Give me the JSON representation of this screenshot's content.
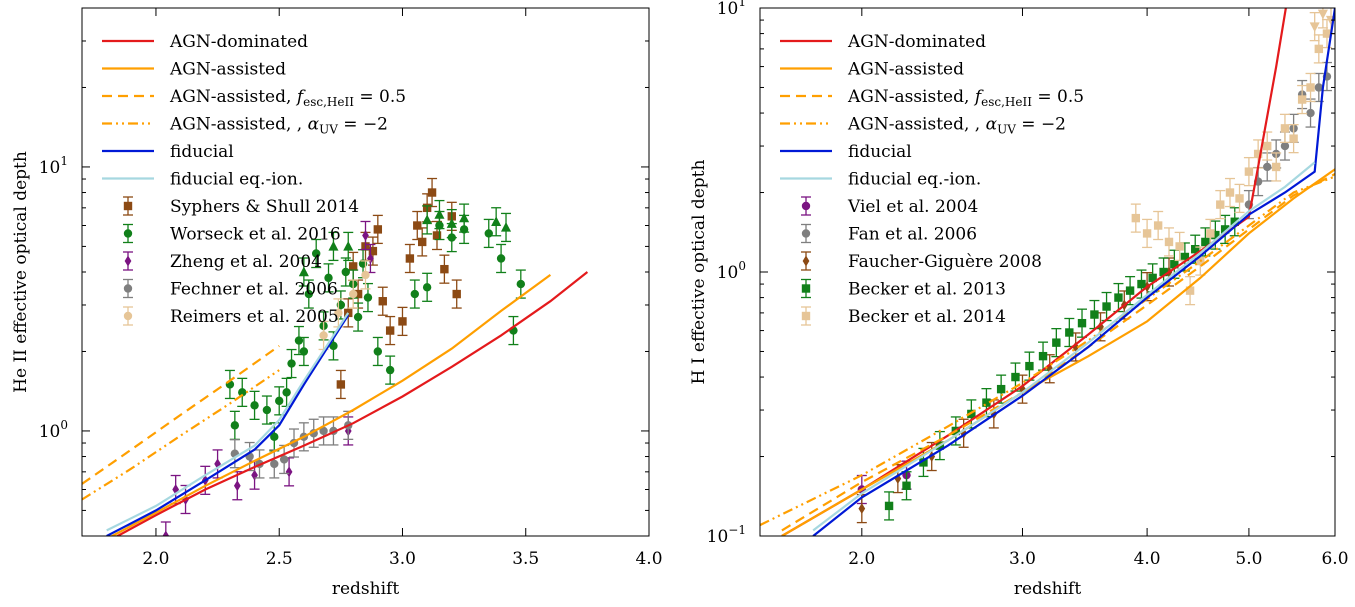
{
  "chart_data": [
    {
      "type": "line",
      "xlabel": "redshift",
      "ylabel": "He II effective optical depth",
      "xlim": [
        1.7,
        4.0
      ],
      "ylim": [
        0.4,
        40
      ],
      "yscale": "log",
      "x_ticks": [
        "2.0",
        "2.5",
        "3.0",
        "3.5",
        "4.0"
      ],
      "x_tick_values": [
        2.0,
        2.5,
        3.0,
        3.5,
        4.0
      ],
      "y_ticks": [
        {
          "base": "10",
          "exp": "0",
          "value": 1
        },
        {
          "base": "10",
          "exp": "1",
          "value": 10
        }
      ],
      "legend_position": "top-left",
      "series": [
        {
          "name": "AGN-dominated",
          "kind": "line",
          "color": "#e41a1c",
          "dash": "solid",
          "x": [
            1.8,
            2.0,
            2.2,
            2.4,
            2.6,
            2.8,
            3.0,
            3.2,
            3.4,
            3.6,
            3.75
          ],
          "y": [
            0.38,
            0.48,
            0.6,
            0.73,
            0.88,
            1.07,
            1.35,
            1.75,
            2.3,
            3.1,
            4.0
          ]
        },
        {
          "name": "AGN-assisted",
          "kind": "line",
          "color": "#ff9f00",
          "dash": "solid",
          "x": [
            1.8,
            2.0,
            2.2,
            2.4,
            2.6,
            2.8,
            3.0,
            3.2,
            3.4,
            3.6
          ],
          "y": [
            0.39,
            0.49,
            0.62,
            0.77,
            0.95,
            1.2,
            1.55,
            2.05,
            2.85,
            3.9
          ]
        },
        {
          "name": "AGN-assisted, f_esc,HeII = 0.5",
          "label_prefix": "AGN-assisted,",
          "label_math": "f",
          "label_sub": "esc,HeII",
          "label_suffix": " = 0.5",
          "kind": "line",
          "color": "#ff9f00",
          "dash": "dashed",
          "x": [
            1.7,
            1.9,
            2.1,
            2.3,
            2.5
          ],
          "y": [
            0.63,
            0.85,
            1.15,
            1.55,
            2.1
          ]
        },
        {
          "name": "AGN-assisted, , α_UV = −2",
          "label_prefix": "AGN-assisted, ,",
          "label_math": "α",
          "label_sub": "UV",
          "label_suffix": " = −2",
          "kind": "line",
          "color": "#ff9f00",
          "dash": "dashdot",
          "x": [
            1.7,
            1.9,
            2.1,
            2.3,
            2.5
          ],
          "y": [
            0.55,
            0.72,
            0.96,
            1.27,
            1.7
          ]
        },
        {
          "name": "fiducial",
          "kind": "line",
          "color": "#0019d6",
          "dash": "solid",
          "x": [
            1.8,
            2.0,
            2.2,
            2.4,
            2.5,
            2.6,
            2.7,
            2.78
          ],
          "y": [
            0.4,
            0.5,
            0.65,
            0.85,
            1.05,
            1.5,
            2.1,
            2.75
          ]
        },
        {
          "name": "fiducial eq.-ion.",
          "kind": "line",
          "color": "#a6d8e0",
          "dash": "solid",
          "x": [
            1.8,
            2.0,
            2.2,
            2.4,
            2.5,
            2.6,
            2.7,
            2.78
          ],
          "y": [
            0.42,
            0.52,
            0.68,
            0.88,
            1.1,
            1.55,
            2.15,
            2.8
          ]
        },
        {
          "name": "Syphers & Shull 2014",
          "kind": "points",
          "marker": "square",
          "color": "#8c4a14",
          "x": [
            2.75,
            2.78,
            2.8,
            2.82,
            2.85,
            2.88,
            2.9,
            2.92,
            2.95,
            3.0,
            3.03,
            3.06,
            3.08,
            3.1,
            3.12,
            3.14,
            3.17,
            3.2,
            3.22
          ],
          "y": [
            1.5,
            2.8,
            4.2,
            3.3,
            5.0,
            4.8,
            5.8,
            3.1,
            2.4,
            2.6,
            4.5,
            6.0,
            5.2,
            7.0,
            8.0,
            5.5,
            4.1,
            6.5,
            3.3
          ]
        },
        {
          "name": "Worseck et al. 2016",
          "kind": "points",
          "marker": "circle",
          "color": "#11801a",
          "x": [
            2.3,
            2.32,
            2.35,
            2.4,
            2.45,
            2.48,
            2.5,
            2.53,
            2.55,
            2.58,
            2.6,
            2.62,
            2.65,
            2.68,
            2.7,
            2.72,
            2.75,
            2.77,
            2.8,
            2.82,
            2.84,
            2.86,
            2.9,
            2.95,
            3.05,
            3.1,
            3.15,
            3.2,
            3.25,
            3.35,
            3.4,
            3.45,
            3.48
          ],
          "y": [
            1.5,
            1.05,
            1.4,
            1.25,
            1.2,
            0.95,
            1.3,
            1.4,
            1.8,
            2.2,
            2.0,
            3.3,
            4.7,
            2.5,
            3.8,
            2.1,
            3.0,
            4.0,
            3.6,
            2.7,
            4.3,
            3.2,
            2.0,
            1.7,
            3.3,
            3.5,
            6.0,
            5.4,
            5.8,
            5.6,
            4.5,
            2.4,
            3.6
          ]
        },
        {
          "name": "Zheng et al. 2004",
          "kind": "points",
          "marker": "diamond",
          "color": "#7b1482",
          "x": [
            2.04,
            2.08,
            2.12,
            2.2,
            2.25,
            2.33,
            2.4,
            2.54,
            2.78,
            2.85,
            2.87
          ],
          "y": [
            0.4,
            0.6,
            0.55,
            0.65,
            0.75,
            0.62,
            0.68,
            0.7,
            1.0,
            5.5,
            4.5
          ]
        },
        {
          "name": "Fechner et al. 2006",
          "kind": "points",
          "marker": "circle",
          "color": "#7f7f7f",
          "x": [
            2.32,
            2.38,
            2.42,
            2.48,
            2.52,
            2.56,
            2.6,
            2.64,
            2.68,
            2.72,
            2.78
          ],
          "y": [
            0.82,
            0.8,
            0.75,
            0.75,
            0.78,
            0.9,
            0.95,
            0.98,
            1.0,
            1.0,
            1.05
          ]
        },
        {
          "name": "Reimers et al. 2005",
          "kind": "points",
          "marker": "circle",
          "color": "#e6c597",
          "x": [
            2.68,
            2.74,
            2.8,
            2.85
          ],
          "y": [
            2.3,
            2.8,
            3.3,
            3.9
          ]
        },
        {
          "name": "Worseck et al. 2016 (lower limits)",
          "kind": "points",
          "marker": "triangle-up",
          "color": "#11801a",
          "x": [
            2.6,
            2.72,
            2.78,
            3.1,
            3.15,
            3.2,
            3.25,
            3.38,
            3.42
          ],
          "y": [
            4.0,
            5.0,
            5.0,
            6.3,
            6.6,
            6.1,
            6.4,
            6.2,
            5.9
          ]
        }
      ]
    },
    {
      "type": "line",
      "xlabel": "redshift",
      "ylabel": "H I effective optical depth",
      "xlim": [
        1.5,
        6.0
      ],
      "ylim": [
        0.1,
        10
      ],
      "xscale": "log(1+z)",
      "yscale": "log",
      "x_ticks": [
        "2.0",
        "3.0",
        "4.0",
        "5.0",
        "6.0"
      ],
      "x_tick_values": [
        2.0,
        3.0,
        4.0,
        5.0,
        6.0
      ],
      "y_ticks": [
        {
          "base": "10",
          "exp": "−1",
          "value": 0.1
        },
        {
          "base": "10",
          "exp": "0",
          "value": 1
        },
        {
          "base": "10",
          "exp": "1",
          "value": 10
        }
      ],
      "legend_position": "top-left",
      "series": [
        {
          "name": "AGN-dominated",
          "kind": "line",
          "color": "#e41a1c",
          "dash": "solid",
          "x": [
            1.6,
            2.0,
            2.5,
            3.0,
            3.5,
            4.0,
            4.5,
            5.0,
            5.1,
            5.3,
            5.45
          ],
          "y": [
            0.1,
            0.15,
            0.24,
            0.37,
            0.58,
            0.88,
            1.2,
            1.62,
            2.5,
            6.0,
            12.0
          ]
        },
        {
          "name": "AGN-assisted",
          "kind": "line",
          "color": "#ff9f00",
          "dash": "solid",
          "x": [
            1.6,
            2.0,
            2.5,
            3.0,
            3.5,
            4.0,
            4.5,
            5.0,
            5.5,
            6.0
          ],
          "y": [
            0.1,
            0.15,
            0.23,
            0.35,
            0.48,
            0.65,
            0.95,
            1.4,
            1.9,
            2.45
          ]
        },
        {
          "name": "AGN-assisted, f_esc,HeII = 0.5",
          "label_prefix": "AGN-assisted,",
          "label_math": "f",
          "label_sub": "esc,HeII",
          "label_suffix": " = 0.5",
          "kind": "line",
          "color": "#ff9f00",
          "dash": "dashed",
          "x": [
            1.6,
            2.0,
            2.5,
            3.0,
            3.5,
            4.0,
            4.5,
            5.0,
            5.5,
            6.0
          ],
          "y": [
            0.105,
            0.16,
            0.24,
            0.35,
            0.52,
            0.75,
            1.05,
            1.45,
            1.95,
            2.35
          ]
        },
        {
          "name": "AGN-assisted, , α_UV = −2",
          "label_prefix": "AGN-assisted, ,",
          "label_math": "α",
          "label_sub": "UV",
          "label_suffix": " = −2",
          "kind": "line",
          "color": "#ff9f00",
          "dash": "dashdot",
          "x": [
            1.5,
            2.0,
            2.5,
            3.0,
            3.5,
            4.0,
            4.5,
            5.0,
            5.5,
            6.0
          ],
          "y": [
            0.11,
            0.17,
            0.26,
            0.38,
            0.55,
            0.79,
            1.1,
            1.5,
            2.0,
            2.3
          ]
        },
        {
          "name": "fiducial",
          "kind": "line",
          "color": "#0019d6",
          "dash": "solid",
          "x": [
            1.75,
            2.0,
            2.5,
            3.0,
            3.5,
            4.0,
            4.5,
            5.0,
            5.4,
            5.75,
            5.85,
            6.0
          ],
          "y": [
            0.1,
            0.14,
            0.22,
            0.34,
            0.52,
            0.8,
            1.15,
            1.65,
            2.0,
            2.4,
            5.0,
            10.0
          ]
        },
        {
          "name": "fiducial eq.-ion.",
          "kind": "line",
          "color": "#a6d8e0",
          "dash": "solid",
          "x": [
            1.75,
            2.0,
            2.5,
            3.0,
            3.5,
            4.0,
            4.5,
            5.0,
            5.4,
            5.75
          ],
          "y": [
            0.105,
            0.145,
            0.23,
            0.35,
            0.54,
            0.82,
            1.18,
            1.7,
            2.1,
            2.6
          ]
        },
        {
          "name": "Viel et al. 2004",
          "kind": "points",
          "marker": "circle",
          "color": "#7b1482",
          "x": [
            2.0,
            2.25
          ],
          "y": [
            0.15,
            0.17
          ]
        },
        {
          "name": "Fan et al. 2006",
          "kind": "points",
          "marker": "circle",
          "color": "#7f7f7f",
          "x": [
            5.0,
            5.1,
            5.2,
            5.3,
            5.4,
            5.5,
            5.6,
            5.7,
            5.8,
            5.9
          ],
          "y": [
            1.8,
            2.2,
            2.5,
            2.8,
            3.0,
            3.5,
            4.7,
            4.0,
            5.0,
            5.5
          ]
        },
        {
          "name": "Faucher-Giguère 2008",
          "kind": "points",
          "marker": "diamond",
          "color": "#8c4a14",
          "x": [
            2.0,
            2.2,
            2.4,
            2.6,
            2.8,
            3.0,
            3.2,
            3.4,
            3.6,
            3.8,
            4.0,
            4.2
          ],
          "y": [
            0.127,
            0.165,
            0.2,
            0.245,
            0.29,
            0.36,
            0.43,
            0.52,
            0.62,
            0.75,
            0.88,
            1.0
          ]
        },
        {
          "name": "Becker et al. 2013",
          "kind": "points",
          "marker": "square",
          "color": "#11801a",
          "x": [
            2.15,
            2.25,
            2.35,
            2.45,
            2.55,
            2.65,
            2.75,
            2.85,
            2.95,
            3.05,
            3.15,
            3.25,
            3.35,
            3.45,
            3.55,
            3.65,
            3.75,
            3.85,
            3.95,
            4.05,
            4.15,
            4.25,
            4.35,
            4.45,
            4.55,
            4.65,
            4.75,
            4.85
          ],
          "y": [
            0.13,
            0.155,
            0.19,
            0.22,
            0.25,
            0.29,
            0.32,
            0.36,
            0.4,
            0.44,
            0.48,
            0.54,
            0.59,
            0.64,
            0.69,
            0.74,
            0.8,
            0.85,
            0.9,
            0.95,
            1.0,
            1.07,
            1.14,
            1.22,
            1.3,
            1.38,
            1.45,
            1.55
          ]
        },
        {
          "name": "Becker et al. 2014",
          "kind": "points",
          "marker": "square",
          "color": "#e6c597",
          "x": [
            3.9,
            4.0,
            4.1,
            4.2,
            4.3,
            4.4,
            4.5,
            4.6,
            4.7,
            4.8,
            4.9,
            5.0,
            5.1,
            5.2,
            5.3,
            5.4,
            5.5,
            5.6,
            5.7,
            5.8,
            5.9
          ],
          "y": [
            1.6,
            1.4,
            1.5,
            1.3,
            1.25,
            0.85,
            1.1,
            1.4,
            1.8,
            2.0,
            1.9,
            2.4,
            2.8,
            3.0,
            2.5,
            3.5,
            3.2,
            4.5,
            5.0,
            7.0,
            8.0
          ]
        },
        {
          "name": "Becker et al. 2014 (lower limits)",
          "kind": "points",
          "marker": "triangle-down",
          "color": "#e6c597",
          "x": [
            5.75,
            5.85,
            5.95
          ],
          "y": [
            8.5,
            9.5,
            9.0
          ]
        }
      ]
    }
  ]
}
